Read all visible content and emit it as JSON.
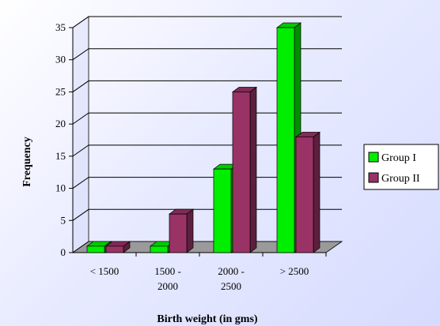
{
  "chart_data": {
    "type": "bar",
    "title": "",
    "xlabel": "Birth weight (in gms)",
    "ylabel": "Frequency",
    "ylim": [
      0,
      35
    ],
    "yticks": [
      0,
      5,
      10,
      15,
      20,
      25,
      30,
      35
    ],
    "grid": true,
    "legend_position": "right",
    "categories": [
      [
        "< 1500"
      ],
      [
        "1500 -",
        "2000"
      ],
      [
        "2000 -",
        "2500"
      ],
      [
        "> 2500"
      ]
    ],
    "series": [
      {
        "name": "Group I",
        "values": [
          1,
          1,
          13,
          35
        ],
        "color": "#00ee00"
      },
      {
        "name": "Group II",
        "values": [
          1,
          6,
          25,
          18
        ],
        "color": "#993366"
      }
    ]
  }
}
